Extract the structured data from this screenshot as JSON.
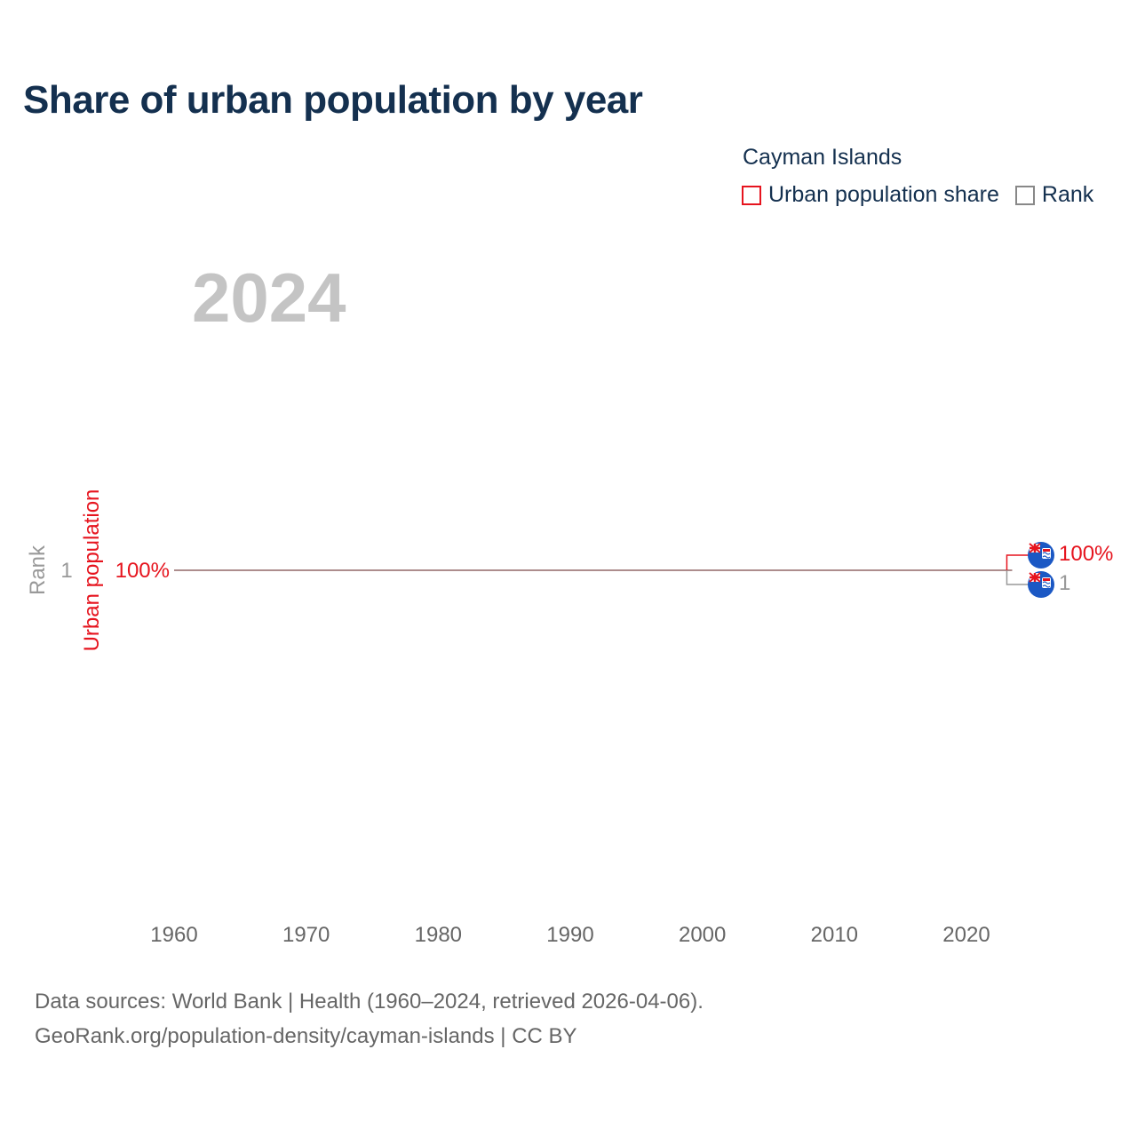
{
  "title": "Share of urban population by year",
  "legend": {
    "country": "Cayman Islands",
    "items": [
      {
        "label": "Urban population share",
        "color": "#e6141e"
      },
      {
        "label": "Rank",
        "color": "#888888"
      }
    ]
  },
  "current_year_label": "2024",
  "source": {
    "line1": "Data sources: World Bank | Health (1960–2024, retrieved 2026-04-06).",
    "line2": "GeoRank.org/population-density/cayman-islands | CC BY"
  },
  "colors": {
    "urban": "#e6141e",
    "rank": "#888888",
    "line": "#b08a8a",
    "title": "#14304f",
    "flag_blue": "#1b58c4"
  },
  "chart_data": {
    "type": "line",
    "title": "Share of urban population by year",
    "x_ticks": [
      "1960",
      "1970",
      "1980",
      "1990",
      "2000",
      "2010",
      "2020"
    ],
    "xlim": [
      1960,
      2025
    ],
    "y_left_label": "Rank",
    "y_right_label": "Urban population",
    "y_left_tick": "1",
    "y_right_tick": "100%",
    "series": [
      {
        "name": "Urban population share",
        "unit": "%",
        "x_start": 1960,
        "x_end": 2024,
        "value": 100,
        "end_label": "100%"
      },
      {
        "name": "Rank",
        "x_start": 1960,
        "x_end": 2024,
        "value": 1,
        "end_label": "1"
      }
    ],
    "end_markers": [
      "cayman-islands-flag",
      "cayman-islands-flag"
    ]
  }
}
